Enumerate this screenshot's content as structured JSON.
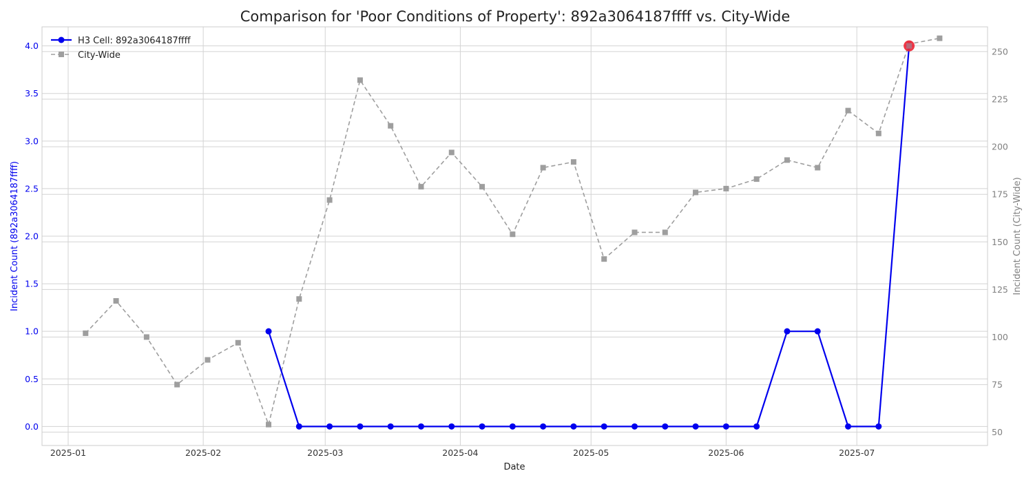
{
  "chart_data": {
    "type": "line",
    "title": "Comparison for 'Poor Conditions of Property': 892a3064187ffff vs. City-Wide",
    "xlabel": "Date",
    "ylabel_left": "Incident Count (892a3064187ffff)",
    "ylabel_right": "Incident Count (City-Wide)",
    "x_ticks": [
      "2025-01",
      "2025-02",
      "2025-03",
      "2025-04",
      "2025-05",
      "2025-06",
      "2025-07"
    ],
    "x_tick_days": [
      0,
      31,
      59,
      90,
      120,
      151,
      181
    ],
    "xlim_days": [
      -6,
      211
    ],
    "ylim_left": [
      -0.2,
      4.2
    ],
    "y_ticks_left": [
      "0.0",
      "0.5",
      "1.0",
      "1.5",
      "2.0",
      "2.5",
      "3.0",
      "3.5",
      "4.0"
    ],
    "ylim_right": [
      43,
      263
    ],
    "y_ticks_right": [
      "50",
      "75",
      "100",
      "125",
      "150",
      "175",
      "200",
      "225",
      "250"
    ],
    "series": [
      {
        "name": "H3 Cell: 892a3064187ffff",
        "axis": "left",
        "color": "#0000ee",
        "marker": "circle",
        "dash": "solid",
        "x_days": [
          46,
          53,
          60,
          67,
          74,
          81,
          88,
          95,
          102,
          109,
          116,
          123,
          130,
          137,
          144,
          151,
          158,
          165,
          172,
          179,
          186,
          193
        ],
        "values": [
          1,
          0,
          0,
          0,
          0,
          0,
          0,
          0,
          0,
          0,
          0,
          0,
          0,
          0,
          0,
          0,
          0,
          1,
          1,
          0,
          0,
          4
        ]
      },
      {
        "name": "City-Wide",
        "axis": "right",
        "color": "#9e9e9e",
        "marker": "square",
        "dash": "dashed",
        "x_days": [
          4,
          11,
          18,
          25,
          32,
          39,
          46,
          53,
          60,
          67,
          74,
          81,
          88,
          95,
          102,
          109,
          116,
          123,
          130,
          137,
          144,
          151,
          158,
          165,
          172,
          179,
          186,
          193,
          200
        ],
        "values": [
          102,
          119,
          100,
          75,
          88,
          97,
          54,
          120,
          172,
          235,
          211,
          179,
          197,
          179,
          154,
          189,
          192,
          141,
          155,
          155,
          176,
          178,
          183,
          193,
          189,
          219,
          207,
          254,
          257
        ]
      }
    ],
    "highlight": {
      "x_day": 193,
      "value": 4,
      "color": "#ee2233"
    },
    "legend_position": "top-left",
    "grid": true
  }
}
